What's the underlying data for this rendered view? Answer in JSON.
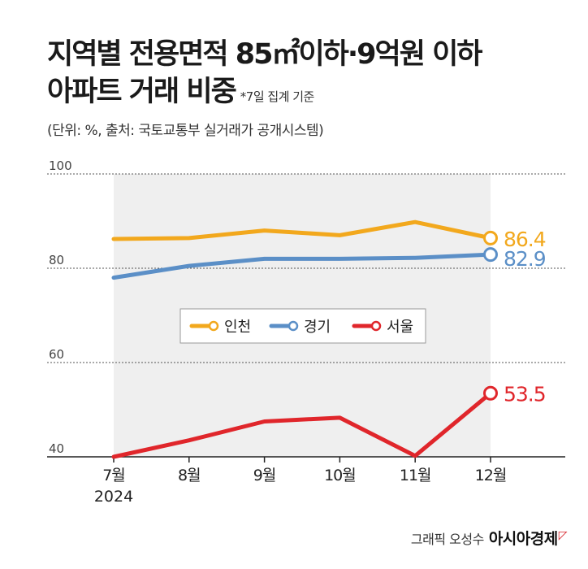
{
  "header": {
    "title_line1": "지역별 전용면적 85㎡이하·9억원 이하",
    "title_line2": "아파트 거래 비중",
    "note": "*7일 집계 기준",
    "unit": "(단위: %, 출처: 국토교통부 실거래가 공개시스템)"
  },
  "chart_data": {
    "type": "line",
    "categories": [
      "7월",
      "8월",
      "9월",
      "10월",
      "11월",
      "12월"
    ],
    "year_label": "2024",
    "ylim": [
      40,
      100
    ],
    "yticks": [
      100,
      80,
      60,
      40
    ],
    "grid": true,
    "legend_position": "center",
    "series": [
      {
        "name": "인천",
        "color": "#f2a81d",
        "values": [
          86.2,
          86.4,
          88.0,
          87.0,
          89.8,
          86.4
        ],
        "end_label": "86.4"
      },
      {
        "name": "경기",
        "color": "#5b8fc7",
        "values": [
          78.0,
          80.5,
          82.0,
          82.0,
          82.2,
          82.9
        ],
        "end_label": "82.9"
      },
      {
        "name": "서울",
        "color": "#e0262b",
        "values": [
          40.0,
          43.5,
          47.5,
          48.3,
          40.2,
          53.5
        ],
        "end_label": "53.5"
      }
    ]
  },
  "footer": {
    "credit": "그래픽 오성수",
    "brand": "아시아경제"
  }
}
